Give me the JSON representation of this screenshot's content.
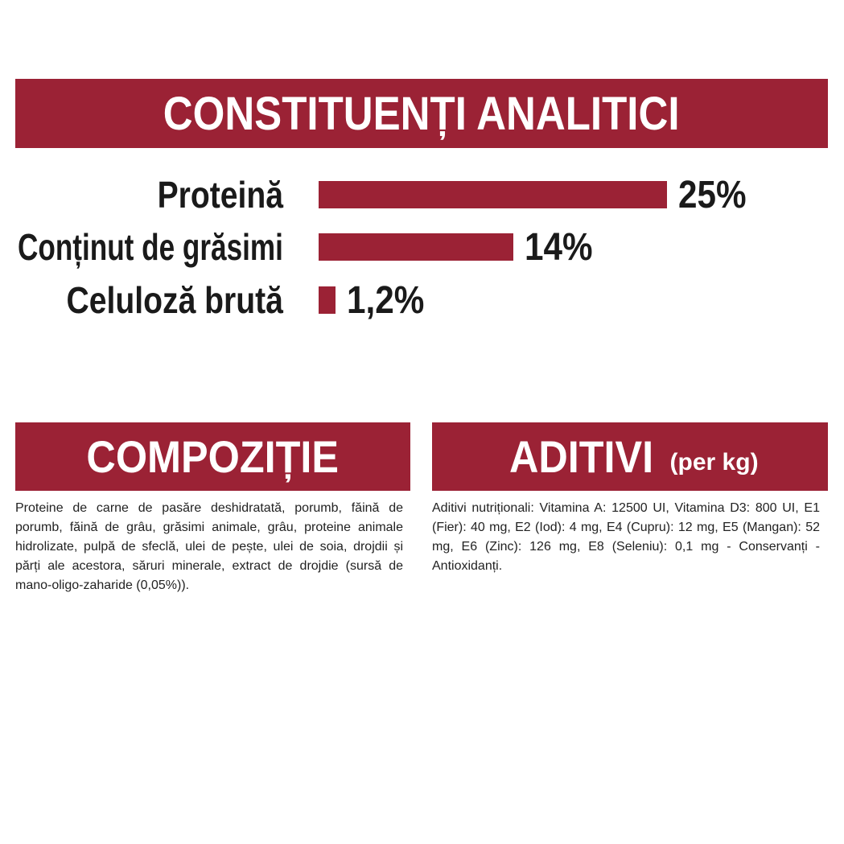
{
  "chart_data": {
    "type": "bar",
    "orientation": "horizontal",
    "title": "CONSTITUENȚI ANALITICI",
    "categories": [
      "Proteină",
      "Conținut de grăsimi",
      "Celuloză brută"
    ],
    "values": [
      25,
      14,
      1.2
    ],
    "value_labels": [
      "25%",
      "14%",
      "1,2%"
    ],
    "color": "#9b2235"
  },
  "composition": {
    "title": "COMPOZIȚIE",
    "text": "Proteine de carne de pasăre deshidratată, porumb, făină de porumb, făină de grâu, grăsimi animale, grâu, proteine animale hidrolizate, pulpă de sfeclă, ulei de pește, ulei de soia, drojdii și părți ale acestora, săruri minerale, extract de drojdie (sursă de mano-oligo-zaharide (0,05%))."
  },
  "additives": {
    "title": "ADITIVI",
    "title_note": "(per kg)",
    "text": "Aditivi nutriționali: Vitamina A: 12500 UI, Vitamina D3: 800 UI, E1 (Fier): 40 mg, E2 (Iod): 4 mg, E4 (Cupru): 12 mg, E5 (Mangan): 52 mg, E6 (Zinc): 126 mg, E8 (Seleniu): 0,1 mg - Conservanți - Antioxidanți."
  }
}
